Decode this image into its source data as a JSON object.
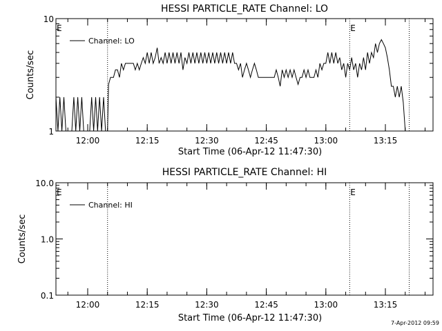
{
  "chart_data": [
    {
      "type": "line",
      "title": "HESSI PARTICLE_RATE Channel: LO",
      "xlabel": "Start Time (06-Apr-12 11:47:30)",
      "ylabel": "Counts/sec",
      "y_scale": "log",
      "ylim": [
        1,
        10
      ],
      "y_tick_labels": [
        "1",
        "10"
      ],
      "xlim": [
        "11:52",
        "13:27"
      ],
      "x_tick_labels": [
        "12:00",
        "12:15",
        "12:30",
        "12:45",
        "13:00",
        "13:15"
      ],
      "event_markers": [
        {
          "time": "11:52",
          "label": "E"
        },
        {
          "time": "12:05",
          "label": ""
        },
        {
          "time": "13:06",
          "label": "E"
        },
        {
          "time": "13:21",
          "label": ""
        }
      ],
      "legend": {
        "position": "top-left",
        "entries": [
          "Channel: LO"
        ]
      },
      "series": [
        {
          "name": "Channel: LO",
          "points": [
            [
              "11:52:00",
              2
            ],
            [
              "11:52:30",
              1
            ],
            [
              "11:53:00",
              2
            ],
            [
              "11:53:30",
              1
            ],
            [
              "11:54:00",
              2
            ],
            [
              "11:54:30",
              1
            ],
            [
              "11:55:00",
              1
            ],
            [
              "11:55:30",
              1
            ],
            [
              "11:56:00",
              1
            ],
            [
              "11:56:30",
              2
            ],
            [
              "11:57:00",
              1
            ],
            [
              "11:57:30",
              2
            ],
            [
              "11:58:00",
              1
            ],
            [
              "11:58:30",
              2
            ],
            [
              "11:59:00",
              1
            ],
            [
              "11:59:30",
              1
            ],
            [
              "12:00:00",
              1
            ],
            [
              "12:00:30",
              1
            ],
            [
              "12:01:00",
              2
            ],
            [
              "12:01:30",
              1
            ],
            [
              "12:02:00",
              2
            ],
            [
              "12:02:30",
              1
            ],
            [
              "12:03:00",
              2
            ],
            [
              "12:03:30",
              1
            ],
            [
              "12:04:00",
              2
            ],
            [
              "12:04:30",
              1
            ],
            [
              "12:05:00",
              1
            ],
            [
              "12:05:15",
              2.6
            ],
            [
              "12:05:45",
              3
            ],
            [
              "12:06:30",
              3
            ],
            [
              "12:07:00",
              3.5
            ],
            [
              "12:07:30",
              3.5
            ],
            [
              "12:08:00",
              3
            ],
            [
              "12:08:30",
              4
            ],
            [
              "12:09:00",
              3.5
            ],
            [
              "12:09:30",
              4
            ],
            [
              "12:10:00",
              4
            ],
            [
              "12:10:30",
              4
            ],
            [
              "12:11:00",
              4
            ],
            [
              "12:11:30",
              4
            ],
            [
              "12:12:00",
              3.5
            ],
            [
              "12:12:30",
              4
            ],
            [
              "12:13:00",
              3.5
            ],
            [
              "12:13:30",
              4
            ],
            [
              "12:14:00",
              4.5
            ],
            [
              "12:14:30",
              4
            ],
            [
              "12:15:00",
              5
            ],
            [
              "12:15:30",
              4
            ],
            [
              "12:16:00",
              5
            ],
            [
              "12:16:30",
              4
            ],
            [
              "12:17:00",
              4.5
            ],
            [
              "12:17:30",
              5.5
            ],
            [
              "12:18:00",
              4
            ],
            [
              "12:18:30",
              4.5
            ],
            [
              "12:19:00",
              4
            ],
            [
              "12:19:30",
              5
            ],
            [
              "12:20:00",
              4
            ],
            [
              "12:20:30",
              5
            ],
            [
              "12:21:00",
              4
            ],
            [
              "12:21:30",
              5
            ],
            [
              "12:22:00",
              4
            ],
            [
              "12:22:30",
              5
            ],
            [
              "12:23:00",
              4
            ],
            [
              "12:23:30",
              5
            ],
            [
              "12:24:00",
              3.5
            ],
            [
              "12:24:30",
              4.5
            ],
            [
              "12:25:00",
              4
            ],
            [
              "12:25:30",
              5
            ],
            [
              "12:26:00",
              4
            ],
            [
              "12:26:30",
              5
            ],
            [
              "12:27:00",
              4
            ],
            [
              "12:27:30",
              5
            ],
            [
              "12:28:00",
              4
            ],
            [
              "12:28:30",
              5
            ],
            [
              "12:29:00",
              4
            ],
            [
              "12:29:30",
              5
            ],
            [
              "12:30:00",
              4
            ],
            [
              "12:30:30",
              5
            ],
            [
              "12:31:00",
              4
            ],
            [
              "12:31:30",
              5
            ],
            [
              "12:32:00",
              4
            ],
            [
              "12:32:30",
              5
            ],
            [
              "12:33:00",
              4
            ],
            [
              "12:33:30",
              5
            ],
            [
              "12:34:00",
              4
            ],
            [
              "12:34:30",
              5
            ],
            [
              "12:35:00",
              4
            ],
            [
              "12:35:30",
              5
            ],
            [
              "12:36:00",
              4
            ],
            [
              "12:36:30",
              5
            ],
            [
              "12:37:00",
              4
            ],
            [
              "12:37:30",
              4
            ],
            [
              "12:38:00",
              3.5
            ],
            [
              "12:38:30",
              4
            ],
            [
              "12:39:00",
              3
            ],
            [
              "12:39:30",
              3.5
            ],
            [
              "12:40:00",
              4
            ],
            [
              "12:40:30",
              3.5
            ],
            [
              "12:41:00",
              3
            ],
            [
              "12:41:30",
              3.5
            ],
            [
              "12:42:00",
              4
            ],
            [
              "12:42:30",
              3.5
            ],
            [
              "12:43:00",
              3
            ],
            [
              "12:43:30",
              3
            ],
            [
              "12:44:00",
              3
            ],
            [
              "12:44:30",
              3
            ],
            [
              "12:45:00",
              3
            ],
            [
              "12:45:30",
              3
            ],
            [
              "12:46:00",
              3
            ],
            [
              "12:46:30",
              3
            ],
            [
              "12:47:00",
              3
            ],
            [
              "12:47:30",
              3.5
            ],
            [
              "12:48:00",
              3
            ],
            [
              "12:48:30",
              2.5
            ],
            [
              "12:49:00",
              3.5
            ],
            [
              "12:49:30",
              3
            ],
            [
              "12:50:00",
              3.5
            ],
            [
              "12:50:30",
              3
            ],
            [
              "12:51:00",
              3.5
            ],
            [
              "12:51:30",
              3
            ],
            [
              "12:52:00",
              3.5
            ],
            [
              "12:52:30",
              3
            ],
            [
              "12:53:00",
              2.6
            ],
            [
              "12:53:30",
              3
            ],
            [
              "12:54:00",
              3
            ],
            [
              "12:54:30",
              3.5
            ],
            [
              "12:55:00",
              3
            ],
            [
              "12:55:30",
              3.5
            ],
            [
              "12:56:00",
              3
            ],
            [
              "12:56:30",
              3
            ],
            [
              "12:57:00",
              3
            ],
            [
              "12:57:30",
              3.5
            ],
            [
              "12:58:00",
              3
            ],
            [
              "12:58:30",
              4
            ],
            [
              "12:59:00",
              3.5
            ],
            [
              "12:59:30",
              4
            ],
            [
              "13:00:00",
              4
            ],
            [
              "13:00:30",
              5
            ],
            [
              "13:01:00",
              4
            ],
            [
              "13:01:30",
              5
            ],
            [
              "13:02:00",
              4
            ],
            [
              "13:02:30",
              5
            ],
            [
              "13:03:00",
              4
            ],
            [
              "13:03:30",
              4.5
            ],
            [
              "13:04:00",
              3.5
            ],
            [
              "13:04:30",
              4
            ],
            [
              "13:05:00",
              3
            ],
            [
              "13:05:30",
              4
            ],
            [
              "13:06:00",
              3.5
            ],
            [
              "13:06:30",
              4.5
            ],
            [
              "13:07:00",
              3.5
            ],
            [
              "13:07:30",
              4
            ],
            [
              "13:08:00",
              3
            ],
            [
              "13:08:30",
              4
            ],
            [
              "13:09:00",
              3.5
            ],
            [
              "13:09:30",
              4.5
            ],
            [
              "13:10:00",
              3.5
            ],
            [
              "13:10:30",
              5
            ],
            [
              "13:11:00",
              4
            ],
            [
              "13:11:30",
              5
            ],
            [
              "13:12:00",
              4.5
            ],
            [
              "13:12:30",
              6
            ],
            [
              "13:13:00",
              5
            ],
            [
              "13:13:30",
              6
            ],
            [
              "13:14:00",
              6.5
            ],
            [
              "13:14:30",
              6
            ],
            [
              "13:15:00",
              5.5
            ],
            [
              "13:15:30",
              4.5
            ],
            [
              "13:16:00",
              3.5
            ],
            [
              "13:16:30",
              2.5
            ],
            [
              "13:17:00",
              2.5
            ],
            [
              "13:17:30",
              2
            ],
            [
              "13:18:00",
              2.5
            ],
            [
              "13:18:30",
              2
            ],
            [
              "13:19:00",
              2.5
            ],
            [
              "13:19:30",
              1.8
            ],
            [
              "13:20:00",
              1
            ]
          ]
        }
      ]
    },
    {
      "type": "line",
      "title": "HESSI PARTICLE_RATE Channel: HI",
      "xlabel": "Start Time (06-Apr-12 11:47:30)",
      "ylabel": "Counts/sec",
      "y_scale": "log",
      "ylim": [
        0.1,
        10
      ],
      "y_tick_labels": [
        "0.1",
        "1.0",
        "10.0"
      ],
      "xlim": [
        "11:52",
        "13:27"
      ],
      "x_tick_labels": [
        "12:00",
        "12:15",
        "12:30",
        "12:45",
        "13:00",
        "13:15"
      ],
      "event_markers": [
        {
          "time": "11:52",
          "label": "E"
        },
        {
          "time": "12:05",
          "label": ""
        },
        {
          "time": "13:06",
          "label": "E"
        },
        {
          "time": "13:21",
          "label": ""
        }
      ],
      "legend": {
        "position": "top-left",
        "entries": [
          "Channel: HI"
        ]
      },
      "series": [
        {
          "name": "Channel: HI",
          "points": []
        }
      ]
    }
  ],
  "footer": {
    "timestamp": "7-Apr-2012 09:59"
  }
}
